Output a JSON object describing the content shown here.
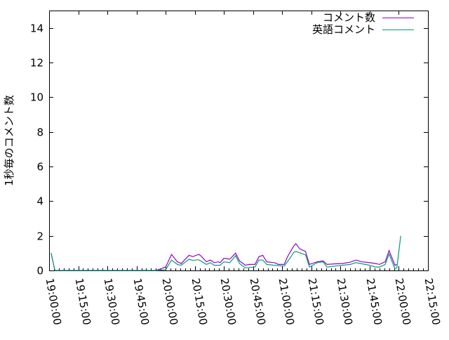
{
  "chart_data": {
    "type": "line",
    "title": "",
    "xlabel": "",
    "ylabel": "1秒毎のコメント数",
    "xlim": [
      "19:00:00",
      "22:15:00"
    ],
    "ylim": [
      0,
      15
    ],
    "grid": false,
    "legend_position": "top-right",
    "x_ticks": [
      "19:00:00",
      "19:15:00",
      "19:30:00",
      "19:45:00",
      "20:00:00",
      "20:15:00",
      "20:30:00",
      "20:45:00",
      "21:00:00",
      "21:15:00",
      "21:30:00",
      "21:45:00",
      "22:00:00",
      "22:15:00"
    ],
    "y_ticks": [
      "0",
      "2",
      "4",
      "6",
      "8",
      "10",
      "12",
      "14"
    ],
    "series": [
      {
        "name": "コメント数",
        "color": "#9400d3",
        "x": [
          "19:01",
          "19:03",
          "19:55",
          "20:00",
          "20:03",
          "20:06",
          "20:08",
          "20:12",
          "20:14",
          "20:17",
          "20:18",
          "20:21",
          "20:23",
          "20:25",
          "20:27",
          "20:28",
          "20:30",
          "20:33",
          "20:36",
          "20:38",
          "20:41",
          "20:43",
          "20:46",
          "20:48",
          "20:50",
          "20:52",
          "20:56",
          "20:58",
          "21:01",
          "21:03",
          "21:06",
          "21:07",
          "21:09",
          "21:12",
          "21:14",
          "21:18",
          "21:21",
          "21:23",
          "21:27",
          "21:31",
          "21:35",
          "21:38",
          "21:41",
          "21:45",
          "21:48",
          "21:50",
          "21:53",
          "21:55",
          "21:58",
          "21:59"
        ],
        "y": [
          1,
          0,
          0,
          0.2,
          0.93,
          0.5,
          0.4,
          0.87,
          0.8,
          0.93,
          0.85,
          0.5,
          0.6,
          0.45,
          0.5,
          0.45,
          0.7,
          0.65,
          1.0,
          0.55,
          0.3,
          0.35,
          0.35,
          0.8,
          0.87,
          0.5,
          0.45,
          0.35,
          0.35,
          0.85,
          1.42,
          1.55,
          1.25,
          1.1,
          0.35,
          0.5,
          0.55,
          0.35,
          0.38,
          0.4,
          0.48,
          0.6,
          0.5,
          0.45,
          0.4,
          0.35,
          0.5,
          1.15,
          0.3,
          0.35
        ]
      },
      {
        "name": "英語コメント",
        "color": "#009e73",
        "x": [
          "19:01",
          "19:03",
          "19:55",
          "20:00",
          "20:03",
          "20:06",
          "20:08",
          "20:12",
          "20:14",
          "20:17",
          "20:21",
          "20:23",
          "20:25",
          "20:28",
          "20:30",
          "20:33",
          "20:36",
          "20:38",
          "20:41",
          "20:46",
          "20:48",
          "20:50",
          "20:52",
          "20:56",
          "21:01",
          "21:03",
          "21:06",
          "21:07",
          "21:12",
          "21:14",
          "21:18",
          "21:21",
          "21:23",
          "21:27",
          "21:35",
          "21:38",
          "21:45",
          "21:48",
          "21:50",
          "21:53",
          "21:55",
          "21:58",
          "21:59",
          "22:01"
        ],
        "y": [
          1,
          0,
          0,
          0.05,
          0.6,
          0.35,
          0.3,
          0.65,
          0.58,
          0.62,
          0.35,
          0.45,
          0.3,
          0.3,
          0.5,
          0.45,
          0.85,
          0.4,
          0.15,
          0.2,
          0.6,
          0.6,
          0.35,
          0.3,
          0.25,
          0.55,
          1.05,
          1.1,
          0.9,
          0.2,
          0.45,
          0.5,
          0.2,
          0.25,
          0.35,
          0.45,
          0.3,
          0.2,
          0.2,
          0.35,
          0.95,
          0.1,
          0.15,
          2.0
        ]
      }
    ]
  }
}
